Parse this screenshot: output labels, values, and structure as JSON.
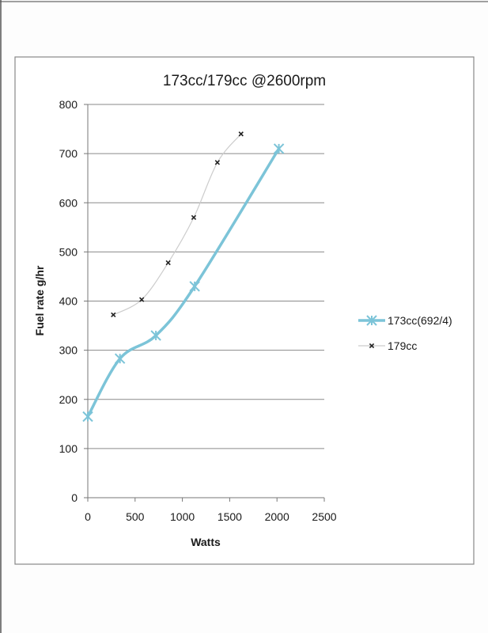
{
  "chart_data": {
    "type": "line",
    "title": "173cc/179cc  @2600rpm",
    "xlabel": "Watts",
    "ylabel": "Fuel rate  g/hr",
    "xlim": [
      0,
      2500
    ],
    "ylim": [
      0,
      800
    ],
    "x_ticks": [
      0,
      500,
      1000,
      1500,
      2000,
      2500
    ],
    "y_ticks": [
      0,
      100,
      200,
      300,
      400,
      500,
      600,
      700,
      800
    ],
    "grid": "horizontal",
    "legend_position": "right",
    "series": [
      {
        "name": "173cc(692/4)",
        "color": "#7cc4d8",
        "marker": "asterisk",
        "x": [
          0,
          340,
          720,
          1130,
          2020
        ],
        "y": [
          165,
          283,
          330,
          430,
          710
        ]
      },
      {
        "name": "179cc",
        "color": "#cccccc",
        "marker": "x",
        "x": [
          270,
          570,
          850,
          1120,
          1370,
          1620
        ],
        "y": [
          372,
          403,
          478,
          570,
          682,
          740
        ]
      }
    ]
  }
}
